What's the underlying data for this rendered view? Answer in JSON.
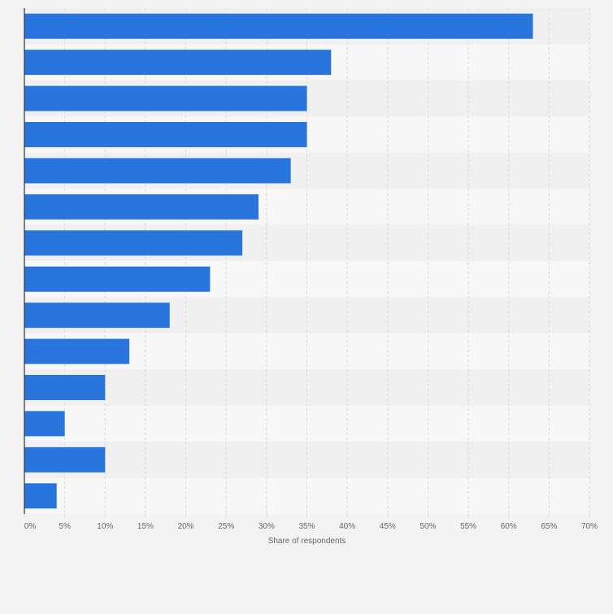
{
  "chart_data": {
    "type": "bar",
    "orientation": "horizontal",
    "categories": [
      "",
      "",
      "",
      "",
      "",
      "",
      "",
      "",
      "",
      "",
      "",
      "",
      "",
      ""
    ],
    "values": [
      63,
      38,
      35,
      35,
      33,
      29,
      27,
      23,
      18,
      13,
      10,
      5,
      10,
      4
    ],
    "xlabel": "Share of respondents",
    "ylabel": "",
    "xlim": [
      0,
      70
    ],
    "xticks": [
      0,
      5,
      10,
      15,
      20,
      25,
      30,
      35,
      40,
      45,
      50,
      55,
      60,
      65,
      70
    ],
    "tick_suffix": "%",
    "grid": true,
    "legend": "none",
    "colors": {
      "bar": "#2876dd",
      "band_light": "#f7f7f7",
      "band_dark": "#f0f0f0",
      "grid": "#d8d8d8",
      "axis": "#333333",
      "tick_text": "#666666",
      "label_text": "#666666"
    }
  }
}
